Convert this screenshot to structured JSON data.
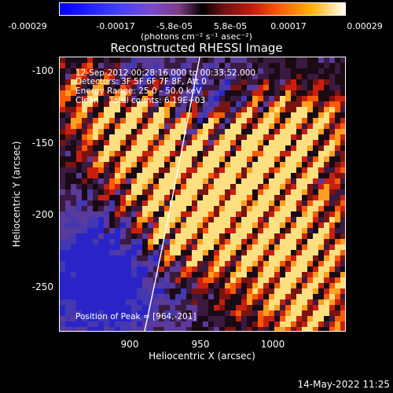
{
  "colorbar": {
    "ticks": [
      "-0.00029",
      "-0.00017",
      "-5.8e-05",
      "5.8e-05",
      "0.00017",
      "0.00029"
    ],
    "units": "(photons cm⁻² s⁻¹ asec⁻²)",
    "colors": [
      "#0000ff",
      "#7a4ad0",
      "#000000",
      "#c01a10",
      "#ff5a00",
      "#fffff0"
    ]
  },
  "title": "Reconstructed RHESSI Image",
  "info": {
    "time_range": "12-Sep-2012 00:28:16.000 to 00:33:52.000",
    "detectors": "Detectors: 3F 5F 6F 7F 8F, Att 0",
    "energy": "Energy Range: 25.0 - 50.0 keV",
    "clean": "Clean    Total counts: 6.19E+03",
    "peak": "Position of Peak = [964,-201]"
  },
  "axes": {
    "xlabel": "Heliocentric X (arcsec)",
    "ylabel": "Heliocentric Y (arcsec)",
    "xticks": [
      "900",
      "950",
      "1000"
    ],
    "yticks": [
      "-100",
      "-150",
      "-200",
      "-250"
    ]
  },
  "timestamp": "14-May-2022 11:25"
}
